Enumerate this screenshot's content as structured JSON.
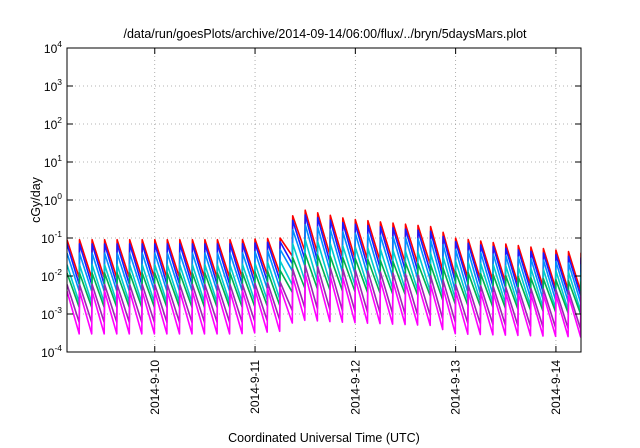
{
  "chart_data": {
    "type": "line",
    "title": "/data/run/goesPlots/archive/2014-09-14/06:00/flux/../bryn/5daysMars.plot",
    "xlabel": "Coordinated Universal Time (UTC)",
    "ylabel": "cGy/day",
    "yscale": "log",
    "ylim": [
      0.0001,
      10000
    ],
    "y_ticks": [
      {
        "base": "10",
        "exp": "-4"
      },
      {
        "base": "10",
        "exp": "-3"
      },
      {
        "base": "10",
        "exp": "-2"
      },
      {
        "base": "10",
        "exp": "-1"
      },
      {
        "base": "10",
        "exp": "0"
      },
      {
        "base": "10",
        "exp": "1"
      },
      {
        "base": "10",
        "exp": "2"
      },
      {
        "base": "10",
        "exp": "3"
      },
      {
        "base": "10",
        "exp": "4"
      }
    ],
    "x_range_days": [
      "2014-09-09T03:00",
      "2014-09-14T06:00"
    ],
    "x_ticks": [
      "2014-9-10",
      "2014-9-11",
      "2014-9-12",
      "2014-9-13",
      "2014-9-14"
    ],
    "grid": true,
    "sawtooth_period_hours": 3,
    "series_trend_note": "sawtooth curves; every series rises at each step then decays until the next",
    "series": [
      {
        "color": "#ff0000",
        "x": [
          "2014-09-09T03:00",
          "2014-09-10T20:00",
          "2014-09-11T06:00",
          "2014-09-11T10:00",
          "2014-09-11T22:00",
          "2014-09-12T18:00",
          "2014-09-13T00:00",
          "2014-09-14T06:00"
        ],
        "peak": [
          0.09,
          0.09,
          0.1,
          0.6,
          0.32,
          0.2,
          0.1,
          0.04
        ],
        "trough": [
          0.009,
          0.009,
          0.012,
          0.05,
          0.03,
          0.02,
          0.01,
          0.004
        ]
      },
      {
        "color": "#1a1aff",
        "x": [
          "2014-09-09T03:00",
          "2014-09-10T20:00",
          "2014-09-11T06:00",
          "2014-09-11T10:00",
          "2014-09-11T22:00",
          "2014-09-12T18:00",
          "2014-09-13T00:00",
          "2014-09-14T06:00"
        ],
        "peak": [
          0.07,
          0.07,
          0.08,
          0.45,
          0.24,
          0.15,
          0.08,
          0.03
        ],
        "trough": [
          0.006,
          0.006,
          0.008,
          0.03,
          0.02,
          0.013,
          0.007,
          0.003
        ]
      },
      {
        "color": "#0090ff",
        "x": [
          "2014-09-09T03:00",
          "2014-09-10T20:00",
          "2014-09-11T06:00",
          "2014-09-11T10:00",
          "2014-09-11T22:00",
          "2014-09-12T18:00",
          "2014-09-13T00:00",
          "2014-09-14T06:00"
        ],
        "peak": [
          0.04,
          0.04,
          0.05,
          0.25,
          0.14,
          0.09,
          0.05,
          0.02
        ],
        "trough": [
          0.004,
          0.004,
          0.005,
          0.02,
          0.012,
          0.008,
          0.004,
          0.002
        ]
      },
      {
        "color": "#00cccc",
        "x": [
          "2014-09-09T03:00",
          "2014-09-10T20:00",
          "2014-09-11T06:00",
          "2014-09-11T10:00",
          "2014-09-11T22:00",
          "2014-09-12T18:00",
          "2014-09-13T00:00",
          "2014-09-14T06:00"
        ],
        "peak": [
          0.02,
          0.02,
          0.025,
          0.1,
          0.06,
          0.04,
          0.025,
          0.012
        ],
        "trough": [
          0.002,
          0.002,
          0.0025,
          0.008,
          0.006,
          0.004,
          0.0025,
          0.0012
        ]
      },
      {
        "color": "#00b050",
        "x": [
          "2014-09-09T03:00",
          "2014-09-10T20:00",
          "2014-09-11T06:00",
          "2014-09-11T10:00",
          "2014-09-11T22:00",
          "2014-09-12T18:00",
          "2014-09-13T00:00",
          "2014-09-14T06:00"
        ],
        "peak": [
          0.012,
          0.012,
          0.014,
          0.04,
          0.03,
          0.02,
          0.013,
          0.007
        ],
        "trough": [
          0.0015,
          0.0015,
          0.0017,
          0.005,
          0.004,
          0.003,
          0.0018,
          0.001
        ]
      },
      {
        "color": "#9c27b0",
        "x": [
          "2014-09-09T03:00",
          "2014-09-10T20:00",
          "2014-09-11T06:00",
          "2014-09-11T10:00",
          "2014-09-11T22:00",
          "2014-09-12T18:00",
          "2014-09-13T00:00",
          "2014-09-14T06:00"
        ],
        "peak": [
          0.006,
          0.006,
          0.007,
          0.02,
          0.015,
          0.01,
          0.006,
          0.004
        ],
        "trough": [
          0.0006,
          0.0006,
          0.0007,
          0.0015,
          0.0012,
          0.0009,
          0.0006,
          0.0004
        ]
      },
      {
        "color": "#ff00ff",
        "x": [
          "2014-09-09T03:00",
          "2014-09-10T20:00",
          "2014-09-11T06:00",
          "2014-09-11T10:00",
          "2014-09-11T22:00",
          "2014-09-12T18:00",
          "2014-09-13T00:00",
          "2014-09-14T06:00"
        ],
        "peak": [
          0.004,
          0.004,
          0.005,
          0.012,
          0.009,
          0.006,
          0.004,
          0.003
        ],
        "trough": [
          0.0003,
          0.0003,
          0.00035,
          0.0007,
          0.0006,
          0.0005,
          0.0003,
          0.00025
        ]
      }
    ]
  }
}
